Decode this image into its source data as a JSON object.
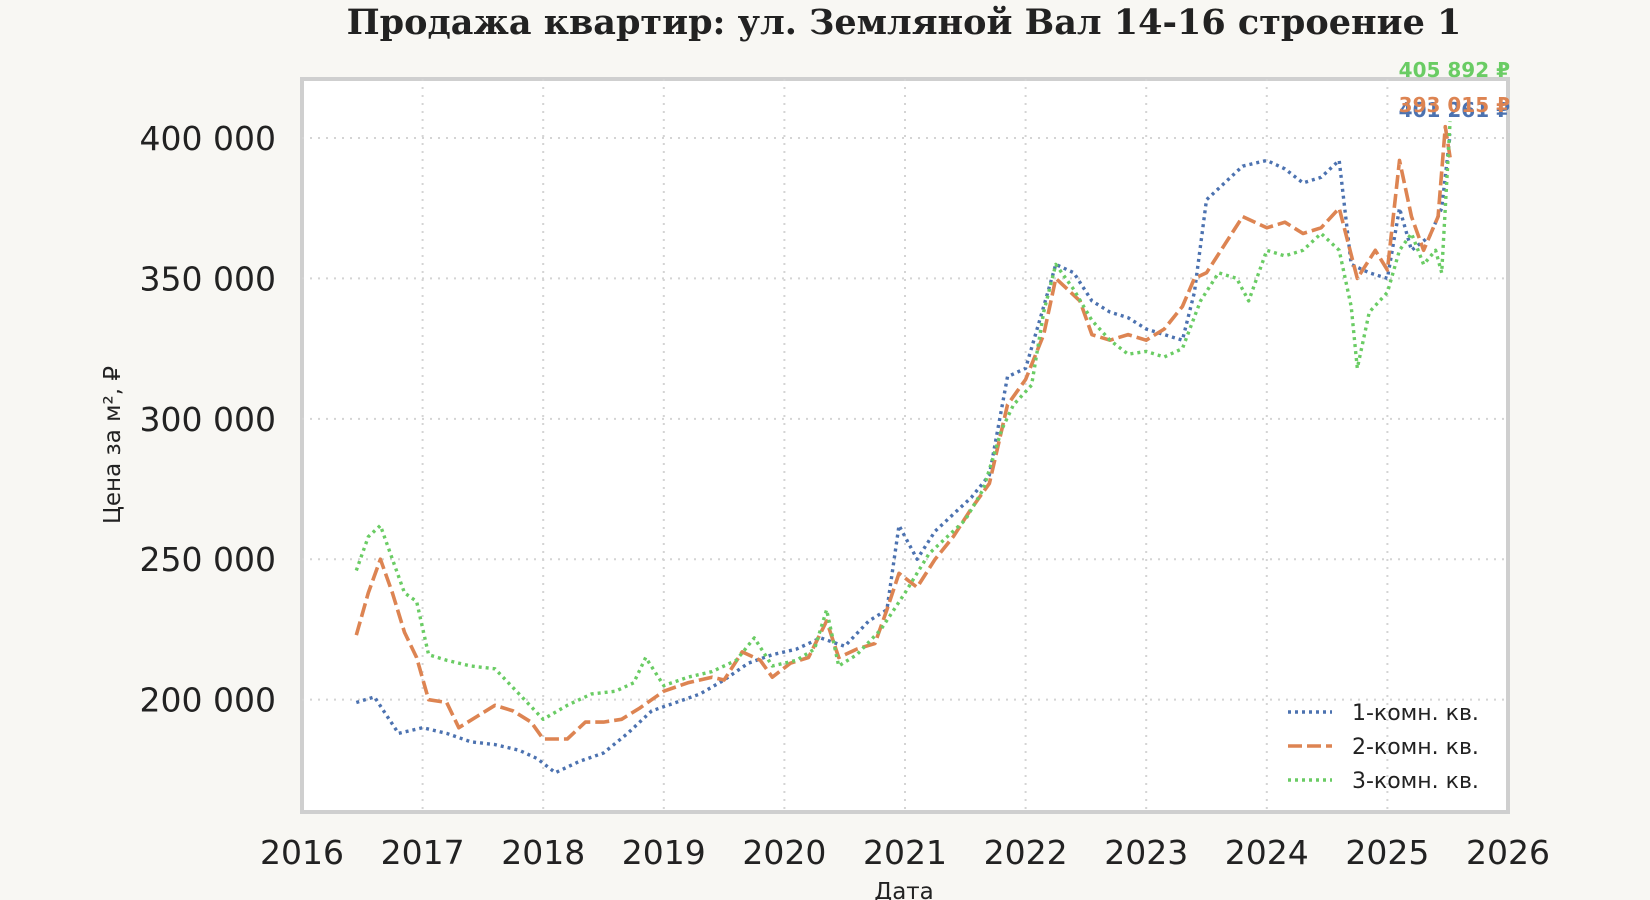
{
  "chart_data": {
    "type": "line",
    "title": "Продажа квартир: ул. Земляной Вал 14-16 строение 1",
    "xlabel": "Дата",
    "ylabel": "Цена за м², ₽",
    "xlim": [
      2016.0,
      2026.0
    ],
    "ylim": [
      160000,
      421000
    ],
    "x_ticks": [
      "2016",
      "2017",
      "2018",
      "2019",
      "2020",
      "2021",
      "2022",
      "2023",
      "2024",
      "2025",
      "2026"
    ],
    "y_ticks": [
      {
        "value": 200000,
        "label": "200 000"
      },
      {
        "value": 250000,
        "label": "250 000"
      },
      {
        "value": 300000,
        "label": "300 000"
      },
      {
        "value": 350000,
        "label": "350 000"
      },
      {
        "value": 400000,
        "label": "400 000"
      }
    ],
    "grid": true,
    "legend_position": "bottom-right",
    "series": [
      {
        "name": "1-комн. кв.",
        "color": "#4c72b0",
        "style": "dotted",
        "end_label": "401 261 ₽",
        "points": [
          [
            2016.45,
            199000
          ],
          [
            2016.6,
            201000
          ],
          [
            2016.8,
            188000
          ],
          [
            2017.0,
            190000
          ],
          [
            2017.2,
            188000
          ],
          [
            2017.4,
            185000
          ],
          [
            2017.6,
            184000
          ],
          [
            2017.8,
            182000
          ],
          [
            2017.95,
            179000
          ],
          [
            2018.1,
            174000
          ],
          [
            2018.3,
            178000
          ],
          [
            2018.5,
            181000
          ],
          [
            2018.7,
            188000
          ],
          [
            2018.9,
            196000
          ],
          [
            2019.1,
            199000
          ],
          [
            2019.3,
            202000
          ],
          [
            2019.5,
            207000
          ],
          [
            2019.7,
            213000
          ],
          [
            2019.9,
            216000
          ],
          [
            2020.1,
            218000
          ],
          [
            2020.3,
            222000
          ],
          [
            2020.5,
            219000
          ],
          [
            2020.7,
            228000
          ],
          [
            2020.85,
            232000
          ],
          [
            2020.95,
            262000
          ],
          [
            2021.1,
            250000
          ],
          [
            2021.25,
            260000
          ],
          [
            2021.4,
            266000
          ],
          [
            2021.55,
            272000
          ],
          [
            2021.7,
            280000
          ],
          [
            2021.85,
            315000
          ],
          [
            2022.0,
            318000
          ],
          [
            2022.15,
            340000
          ],
          [
            2022.25,
            355000
          ],
          [
            2022.4,
            352000
          ],
          [
            2022.55,
            342000
          ],
          [
            2022.7,
            338000
          ],
          [
            2022.85,
            336000
          ],
          [
            2023.0,
            332000
          ],
          [
            2023.15,
            330000
          ],
          [
            2023.3,
            328000
          ],
          [
            2023.4,
            345000
          ],
          [
            2023.5,
            378000
          ],
          [
            2023.65,
            384000
          ],
          [
            2023.8,
            390000
          ],
          [
            2024.0,
            392000
          ],
          [
            2024.15,
            389000
          ],
          [
            2024.3,
            384000
          ],
          [
            2024.45,
            386000
          ],
          [
            2024.6,
            392000
          ],
          [
            2024.7,
            355000
          ],
          [
            2024.85,
            352000
          ],
          [
            2025.0,
            350000
          ],
          [
            2025.1,
            375000
          ],
          [
            2025.2,
            360000
          ],
          [
            2025.35,
            365000
          ],
          [
            2025.45,
            375000
          ],
          [
            2025.52,
            401261
          ]
        ]
      },
      {
        "name": "2-комн. кв.",
        "color": "#dd8452",
        "style": "dashed",
        "end_label": "393 015 ₽",
        "points": [
          [
            2016.45,
            223000
          ],
          [
            2016.55,
            238000
          ],
          [
            2016.65,
            250000
          ],
          [
            2016.75,
            238000
          ],
          [
            2016.85,
            224000
          ],
          [
            2016.95,
            215000
          ],
          [
            2017.05,
            200000
          ],
          [
            2017.2,
            199000
          ],
          [
            2017.3,
            190000
          ],
          [
            2017.45,
            194000
          ],
          [
            2017.6,
            198000
          ],
          [
            2017.75,
            196000
          ],
          [
            2017.9,
            192000
          ],
          [
            2018.0,
            186000
          ],
          [
            2018.2,
            186000
          ],
          [
            2018.35,
            192000
          ],
          [
            2018.5,
            192000
          ],
          [
            2018.65,
            193000
          ],
          [
            2018.8,
            197000
          ],
          [
            2019.0,
            203000
          ],
          [
            2019.2,
            206000
          ],
          [
            2019.4,
            208000
          ],
          [
            2019.5,
            207000
          ],
          [
            2019.65,
            217000
          ],
          [
            2019.8,
            214000
          ],
          [
            2019.9,
            208000
          ],
          [
            2020.05,
            213000
          ],
          [
            2020.2,
            215000
          ],
          [
            2020.35,
            228000
          ],
          [
            2020.45,
            215000
          ],
          [
            2020.6,
            218000
          ],
          [
            2020.75,
            220000
          ],
          [
            2020.85,
            232000
          ],
          [
            2020.95,
            245000
          ],
          [
            2021.1,
            240000
          ],
          [
            2021.25,
            250000
          ],
          [
            2021.4,
            258000
          ],
          [
            2021.55,
            268000
          ],
          [
            2021.7,
            277000
          ],
          [
            2021.85,
            305000
          ],
          [
            2022.0,
            314000
          ],
          [
            2022.15,
            330000
          ],
          [
            2022.25,
            350000
          ],
          [
            2022.35,
            346000
          ],
          [
            2022.45,
            342000
          ],
          [
            2022.55,
            330000
          ],
          [
            2022.7,
            328000
          ],
          [
            2022.85,
            330000
          ],
          [
            2023.0,
            328000
          ],
          [
            2023.15,
            332000
          ],
          [
            2023.3,
            340000
          ],
          [
            2023.4,
            350000
          ],
          [
            2023.5,
            352000
          ],
          [
            2023.65,
            362000
          ],
          [
            2023.8,
            372000
          ],
          [
            2024.0,
            368000
          ],
          [
            2024.15,
            370000
          ],
          [
            2024.3,
            366000
          ],
          [
            2024.45,
            368000
          ],
          [
            2024.6,
            375000
          ],
          [
            2024.75,
            350000
          ],
          [
            2024.9,
            360000
          ],
          [
            2025.0,
            353000
          ],
          [
            2025.1,
            392000
          ],
          [
            2025.2,
            372000
          ],
          [
            2025.3,
            360000
          ],
          [
            2025.42,
            372000
          ],
          [
            2025.48,
            404000
          ],
          [
            2025.52,
            393015
          ]
        ]
      },
      {
        "name": "3-комн. кв.",
        "color": "#6acc64",
        "style": "dotted",
        "end_label": "405 892 ₽",
        "points": [
          [
            2016.45,
            246000
          ],
          [
            2016.55,
            258000
          ],
          [
            2016.65,
            262000
          ],
          [
            2016.75,
            250000
          ],
          [
            2016.85,
            238000
          ],
          [
            2016.95,
            235000
          ],
          [
            2017.05,
            216000
          ],
          [
            2017.2,
            214000
          ],
          [
            2017.4,
            212000
          ],
          [
            2017.6,
            211000
          ],
          [
            2017.8,
            202000
          ],
          [
            2018.0,
            193000
          ],
          [
            2018.2,
            198000
          ],
          [
            2018.4,
            202000
          ],
          [
            2018.6,
            203000
          ],
          [
            2018.75,
            206000
          ],
          [
            2018.85,
            215000
          ],
          [
            2019.0,
            205000
          ],
          [
            2019.2,
            208000
          ],
          [
            2019.4,
            210000
          ],
          [
            2019.6,
            214000
          ],
          [
            2019.75,
            222000
          ],
          [
            2019.9,
            212000
          ],
          [
            2020.1,
            214000
          ],
          [
            2020.25,
            218000
          ],
          [
            2020.35,
            232000
          ],
          [
            2020.45,
            212000
          ],
          [
            2020.6,
            216000
          ],
          [
            2020.8,
            225000
          ],
          [
            2021.0,
            238000
          ],
          [
            2021.2,
            252000
          ],
          [
            2021.35,
            258000
          ],
          [
            2021.5,
            264000
          ],
          [
            2021.65,
            275000
          ],
          [
            2021.8,
            296000
          ],
          [
            2021.9,
            305000
          ],
          [
            2022.05,
            312000
          ],
          [
            2022.15,
            338000
          ],
          [
            2022.25,
            355000
          ],
          [
            2022.4,
            346000
          ],
          [
            2022.55,
            335000
          ],
          [
            2022.7,
            328000
          ],
          [
            2022.85,
            323000
          ],
          [
            2023.0,
            324000
          ],
          [
            2023.15,
            322000
          ],
          [
            2023.3,
            325000
          ],
          [
            2023.45,
            342000
          ],
          [
            2023.6,
            352000
          ],
          [
            2023.75,
            350000
          ],
          [
            2023.85,
            342000
          ],
          [
            2024.0,
            360000
          ],
          [
            2024.15,
            358000
          ],
          [
            2024.3,
            360000
          ],
          [
            2024.45,
            366000
          ],
          [
            2024.6,
            360000
          ],
          [
            2024.7,
            340000
          ],
          [
            2024.75,
            318000
          ],
          [
            2024.85,
            338000
          ],
          [
            2025.0,
            345000
          ],
          [
            2025.1,
            360000
          ],
          [
            2025.2,
            366000
          ],
          [
            2025.3,
            355000
          ],
          [
            2025.4,
            360000
          ],
          [
            2025.45,
            352000
          ],
          [
            2025.52,
            405892
          ]
        ]
      }
    ]
  }
}
